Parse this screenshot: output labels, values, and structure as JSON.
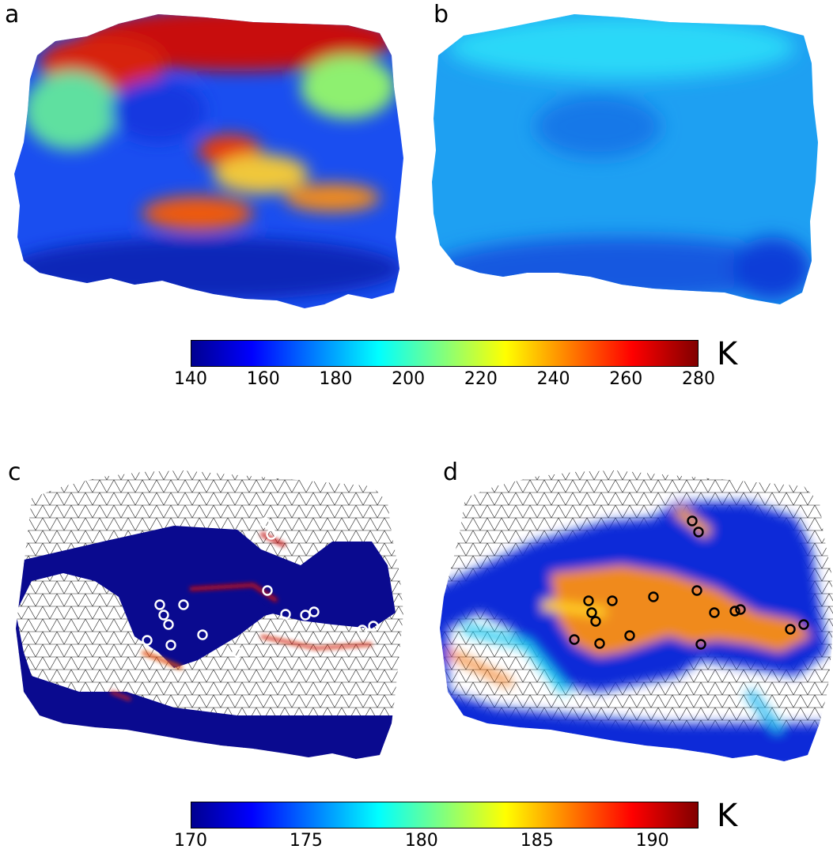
{
  "panels": {
    "a": {
      "letter": "a",
      "colormap": "top",
      "style": "full",
      "scheme": "hot-top"
    },
    "b": {
      "letter": "b",
      "colormap": "top",
      "style": "full",
      "scheme": "cool-uniform"
    },
    "c": {
      "letter": "c",
      "colormap": "bottom",
      "style": "mesh",
      "marker_color": "#ffffff",
      "marker_count": 16
    },
    "d": {
      "letter": "d",
      "colormap": "bottom",
      "style": "mesh",
      "marker_color": "#000000",
      "marker_count": 17
    }
  },
  "colorbars": {
    "top": {
      "unit": "K",
      "min": 140,
      "max": 280,
      "ticks": [
        "140",
        "160",
        "180",
        "200",
        "220",
        "240",
        "260",
        "280"
      ]
    },
    "bottom": {
      "unit": "K",
      "min": 170,
      "max": 192,
      "ticks": [
        "170",
        "175",
        "180",
        "185",
        "190"
      ]
    }
  },
  "colormap": "jet"
}
